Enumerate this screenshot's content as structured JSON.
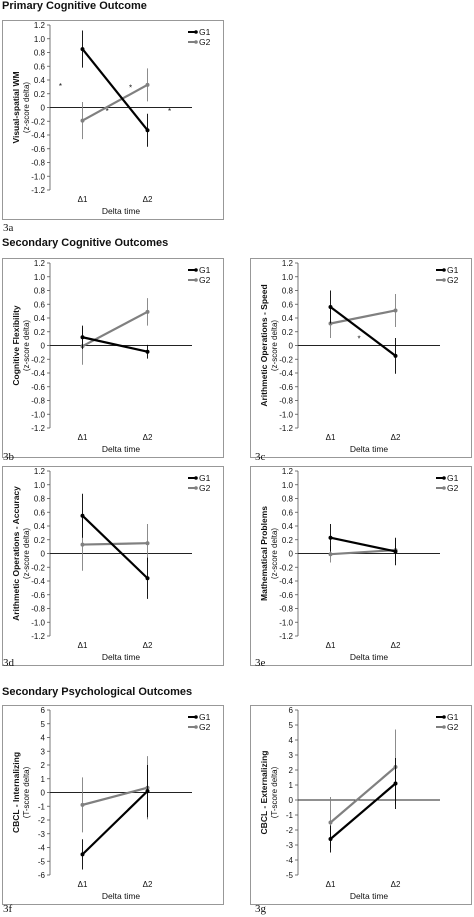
{
  "sections": [
    {
      "title": "Primary Cognitive Outcome",
      "top": 0
    },
    {
      "title": "Secondary Cognitive Outcomes",
      "top": 237
    },
    {
      "title": "Secondary Psychological Outcomes",
      "top": 686
    }
  ],
  "colors": {
    "G1": "#000000",
    "G2": "#808080",
    "frame": "#7f7f7f"
  },
  "chart_data": [
    {
      "id": "3a",
      "label": "3a",
      "type": "line",
      "ylabel": "Visual-spatial WM",
      "ylabel_sub": "(z-score delta)",
      "xlabel": "Delta time",
      "categories": [
        "Δ1",
        "Δ2"
      ],
      "ylim": [
        -1.2,
        1.2
      ],
      "ystep": 0.2,
      "decimals": 1,
      "series": [
        {
          "name": "G1",
          "values": [
            0.85,
            -0.33
          ],
          "err": [
            0.27,
            0.24
          ]
        },
        {
          "name": "G2",
          "values": [
            -0.19,
            0.33
          ],
          "err": [
            0.27,
            0.24
          ]
        }
      ],
      "annotations": [
        {
          "text": "*",
          "x": 0.08,
          "y": 0.31
        },
        {
          "text": "*",
          "x": 0.44,
          "y": -0.05
        },
        {
          "text": "*",
          "x": 0.62,
          "y": 0.29
        },
        {
          "text": "*",
          "x": 0.92,
          "y": -0.05
        }
      ]
    },
    {
      "id": "3b",
      "label": "3b",
      "type": "line",
      "ylabel": "Cognitive Flexibility",
      "ylabel_sub": "(z-score delta)",
      "xlabel": "Delta time",
      "categories": [
        "Δ1",
        "Δ2"
      ],
      "ylim": [
        -1.2,
        1.2
      ],
      "ystep": 0.2,
      "decimals": 1,
      "series": [
        {
          "name": "G1",
          "values": [
            0.12,
            -0.09
          ],
          "err": [
            0.17,
            0.1
          ]
        },
        {
          "name": "G2",
          "values": [
            -0.01,
            0.49
          ],
          "err": [
            0.27,
            0.2
          ]
        }
      ],
      "annotations": []
    },
    {
      "id": "3c",
      "label": "3c",
      "type": "line",
      "ylabel": "Arithmetic Operations - Speed",
      "ylabel_sub": "(z-score delta)",
      "xlabel": "Delta time",
      "categories": [
        "Δ1",
        "Δ2"
      ],
      "ylim": [
        -1.2,
        1.2
      ],
      "ystep": 0.2,
      "decimals": 1,
      "series": [
        {
          "name": "G1",
          "values": [
            0.56,
            -0.15
          ],
          "err": [
            0.24,
            0.26
          ]
        },
        {
          "name": "G2",
          "values": [
            0.32,
            0.51
          ],
          "err": [
            0.21,
            0.24
          ]
        }
      ],
      "annotations": [
        {
          "text": "*",
          "x": 0.47,
          "y": 0.1
        }
      ]
    },
    {
      "id": "3d",
      "label": "3d",
      "type": "line",
      "ylabel": "Arithmetic Operations - Accuracy",
      "ylabel_sub": "(z-score delta)",
      "xlabel": "Delta time",
      "categories": [
        "Δ1",
        "Δ2"
      ],
      "ylim": [
        -1.2,
        1.2
      ],
      "ystep": 0.2,
      "decimals": 1,
      "series": [
        {
          "name": "G1",
          "values": [
            0.55,
            -0.36
          ],
          "err": [
            0.32,
            0.3
          ]
        },
        {
          "name": "G2",
          "values": [
            0.13,
            0.15
          ],
          "err": [
            0.38,
            0.28
          ]
        }
      ],
      "annotations": []
    },
    {
      "id": "3e",
      "label": "3e",
      "type": "line",
      "ylabel": "Mathematical Problems",
      "ylabel_sub": "(z-score delta)",
      "xlabel": "Delta time",
      "categories": [
        "Δ1",
        "Δ2"
      ],
      "ylim": [
        -1.2,
        1.2
      ],
      "ystep": 0.2,
      "decimals": 1,
      "series": [
        {
          "name": "G1",
          "values": [
            0.23,
            0.03
          ],
          "err": [
            0.2,
            0.2
          ]
        },
        {
          "name": "G2",
          "values": [
            -0.01,
            0.05
          ],
          "err": [
            0.12,
            0.16
          ]
        }
      ],
      "annotations": []
    },
    {
      "id": "3f",
      "label": "3f",
      "type": "line",
      "ylabel": "CBCL - Internalizing",
      "ylabel_sub": "(T-score delta)",
      "xlabel": "Delta time",
      "categories": [
        "Δ1",
        "Δ2"
      ],
      "ylim": [
        -6,
        6
      ],
      "ystep": 1,
      "decimals": 0,
      "series": [
        {
          "name": "G1",
          "values": [
            -4.5,
            0.1
          ],
          "err": [
            1.1,
            1.9
          ]
        },
        {
          "name": "G2",
          "values": [
            -0.9,
            0.35
          ],
          "err": [
            2.0,
            2.3
          ]
        }
      ],
      "annotations": []
    },
    {
      "id": "3g",
      "label": "3g",
      "type": "line",
      "ylabel": "CBCL - Externalizing",
      "ylabel_sub": "(T-score delta)",
      "xlabel": "Delta time",
      "categories": [
        "Δ1",
        "Δ2"
      ],
      "ylim": [
        -5,
        6
      ],
      "ystep": 1,
      "decimals": 0,
      "series": [
        {
          "name": "G1",
          "values": [
            -2.6,
            1.1
          ],
          "err": [
            0.9,
            1.7
          ]
        },
        {
          "name": "G2",
          "values": [
            -1.5,
            2.2
          ],
          "err": [
            1.7,
            2.5
          ]
        }
      ],
      "annotations": []
    }
  ]
}
